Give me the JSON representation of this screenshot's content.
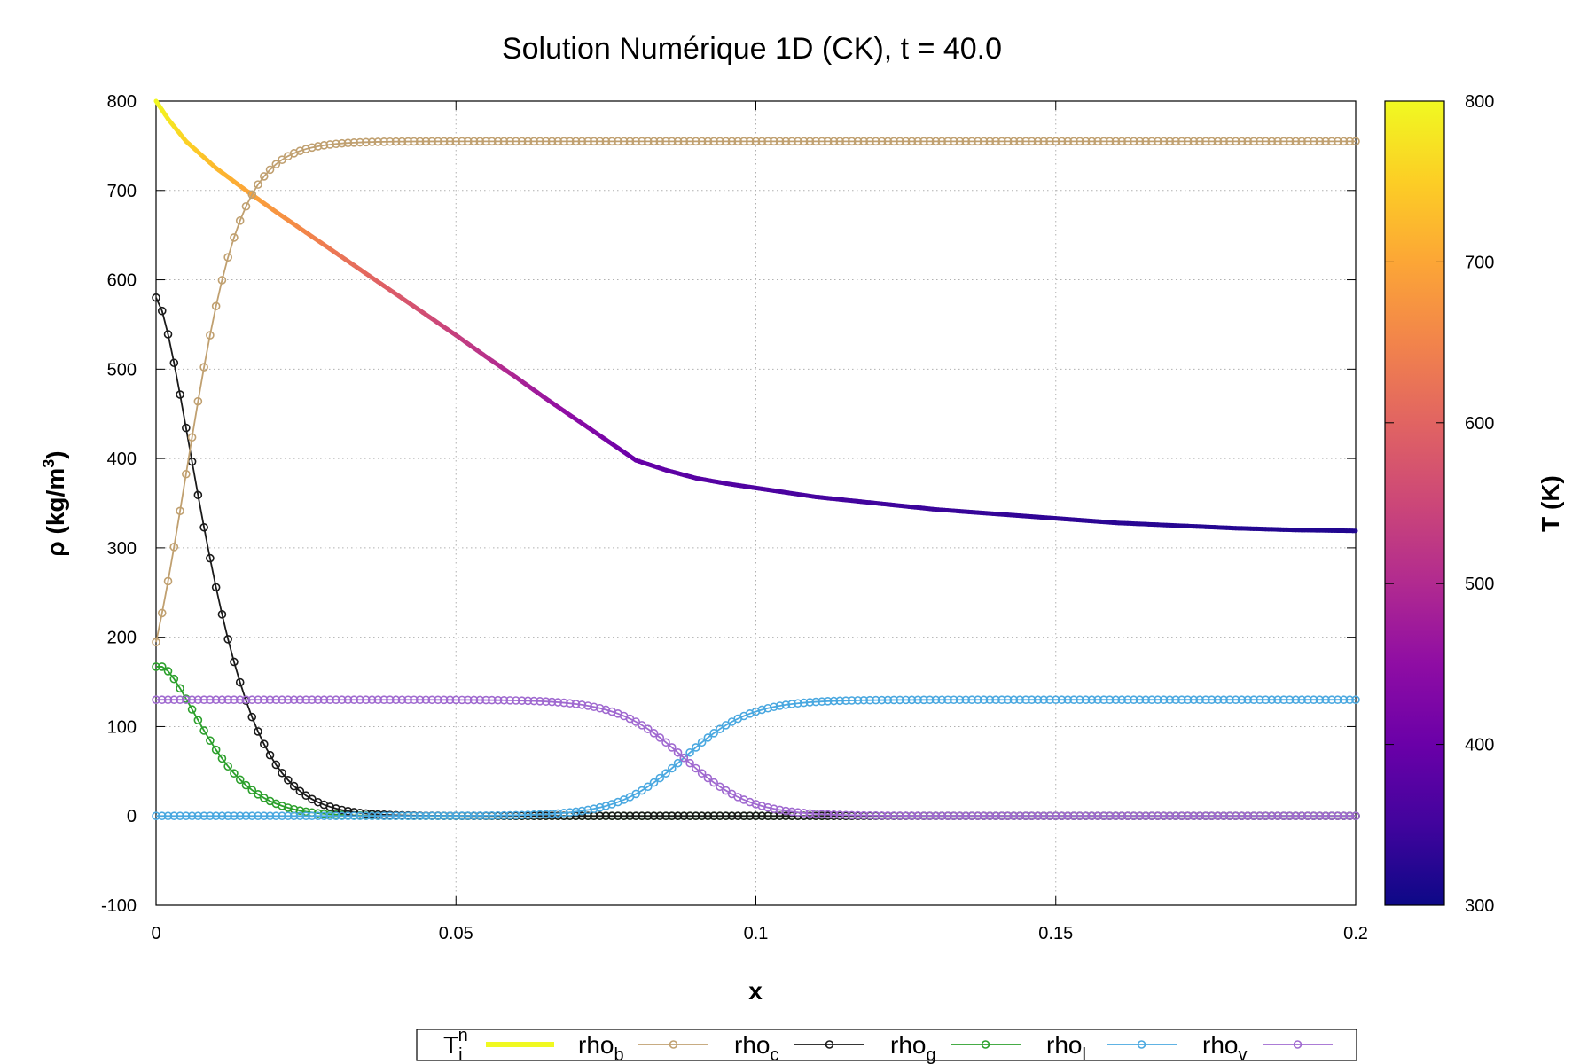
{
  "chart_data": {
    "type": "line",
    "title": "Solution Numérique 1D (CK), t = 40.0",
    "xlabel": "x",
    "ylabel": {
      "text": "ρ (kg/m",
      "sup": "3",
      "close": ")"
    },
    "colorbar_label": "T (K)",
    "xlim": [
      0,
      0.2
    ],
    "ylim": [
      -100,
      800
    ],
    "xticks": [
      0,
      0.05,
      0.1,
      0.15,
      0.2
    ],
    "xtick_labels": [
      "0",
      "0.05",
      "0.1",
      "0.15",
      "0.2"
    ],
    "yticks": [
      -100,
      0,
      100,
      200,
      300,
      400,
      500,
      600,
      700,
      800
    ],
    "ytick_labels": [
      "-100",
      "0",
      "100",
      "200",
      "300",
      "400",
      "500",
      "600",
      "700",
      "800"
    ],
    "colorbar_range": [
      300,
      800
    ],
    "colorbar_ticks": [
      300,
      400,
      500,
      600,
      700,
      800
    ],
    "colorbar_tick_labels": [
      "300",
      "400",
      "500",
      "600",
      "700",
      "800"
    ],
    "grid": true,
    "legend_position": "bottom",
    "colorbar_colors": [
      "#0d0887",
      "#41049d",
      "#6a00a8",
      "#8f0da4",
      "#b12a90",
      "#cc4778",
      "#e16462",
      "#f2844b",
      "#fca636",
      "#fcce25",
      "#f0f921"
    ],
    "temperature_series": {
      "legend": {
        "base": "T",
        "sub": "i",
        "sup": "n"
      },
      "legend_color": "#f0f921",
      "x": [
        0,
        0.002,
        0.005,
        0.01,
        0.015,
        0.02,
        0.025,
        0.03,
        0.035,
        0.04,
        0.045,
        0.05,
        0.055,
        0.06,
        0.065,
        0.07,
        0.075,
        0.08,
        0.085,
        0.09,
        0.095,
        0.1,
        0.11,
        0.12,
        0.13,
        0.14,
        0.15,
        0.16,
        0.17,
        0.18,
        0.19,
        0.2
      ],
      "y": [
        800,
        780,
        755,
        725,
        700,
        676,
        653,
        630,
        607,
        584,
        561,
        538,
        514,
        491,
        467,
        444,
        421,
        398,
        387,
        378,
        372,
        367,
        357,
        350,
        343,
        338,
        333,
        328,
        325,
        322,
        320,
        319
      ]
    },
    "marker_count": 201,
    "series": [
      {
        "name": "rho",
        "sub": "b",
        "color": "#c0a070",
        "shape": "sigmoid",
        "start": 10,
        "end": 755,
        "center": 0.005,
        "width": 0.0045
      },
      {
        "name": "rho",
        "sub": "c",
        "color": "#1a1a1a",
        "shape": "decay",
        "start": 580,
        "end": 0,
        "center": 0,
        "width": 0.0072
      },
      {
        "name": "rho",
        "sub": "g",
        "color": "#2ca02c",
        "shape": "decay",
        "start": 167,
        "end": 0,
        "center": 0.001,
        "width": 0.0065
      },
      {
        "name": "rho",
        "sub": "l",
        "color": "#4aa8e0",
        "shape": "sigmoid",
        "start": 0,
        "end": 130,
        "center": 0.088,
        "width": 0.0055
      },
      {
        "name": "rho",
        "sub": "v",
        "color": "#a06ad0",
        "shape": "sigmoid",
        "start": 130,
        "end": 0,
        "center": 0.088,
        "width": 0.0055
      }
    ]
  }
}
